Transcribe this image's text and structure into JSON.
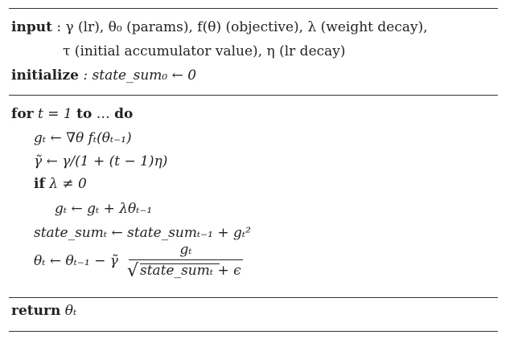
{
  "header": {
    "input_label": "input",
    "input_line1": ": γ (lr), θ₀ (params), f(θ) (objective), λ (weight decay),",
    "input_line2": "τ (initial accumulator value), η (lr decay)",
    "initialize_label": "initialize",
    "initialize_value": ": state_sum₀ ← 0"
  },
  "body": {
    "for_kw": "for",
    "for_expr": "t = 1",
    "to_kw": "to",
    "dots": "…",
    "do_kw": "do",
    "line_grad": "gₜ ← ∇θ fₜ(θₜ₋₁)",
    "line_gamma": "γ̃ ← γ/(1 + (t − 1)η)",
    "if_kw": "if",
    "if_cond": "λ ≠ 0",
    "line_wd": "gₜ ← gₜ + λθₜ₋₁",
    "line_sum": "state_sumₜ ← state_sumₜ₋₁ + gₜ²",
    "line_theta_lhs": "θₜ ← θₜ₋₁ − γ̃",
    "frac_num": "gₜ",
    "frac_den": "state_sumₜ + ϵ"
  },
  "footer": {
    "return_kw": "return",
    "return_value": "θₜ"
  }
}
